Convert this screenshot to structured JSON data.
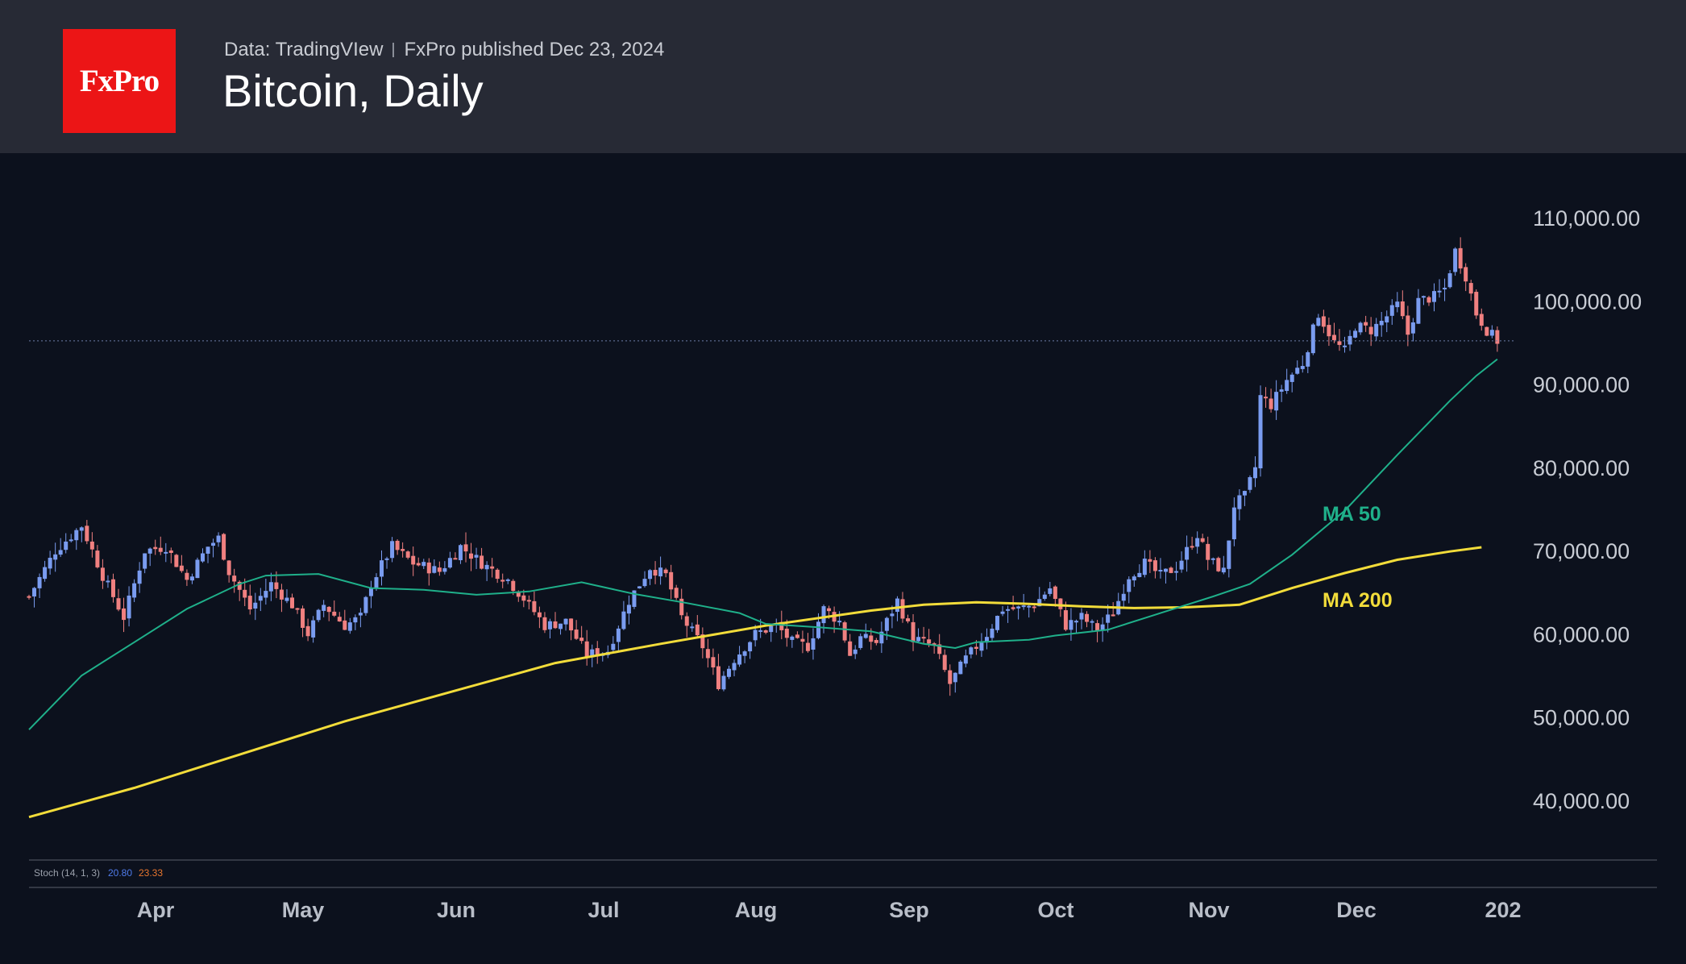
{
  "header": {
    "logo": "FxPro",
    "data_source": "Data: TradingVIew",
    "publisher": "FxPro published Dec 23, 2024",
    "title": "Bitcoin, Daily"
  },
  "colors": {
    "up_candle": "#7a9cf0",
    "down_candle": "#f08080",
    "ma50": "#1fb08a",
    "ma200": "#f2dc3a",
    "stoch_k": "#4f7bea",
    "stoch_d": "#e8762e"
  },
  "chart_data": {
    "type": "candlestick",
    "title": "Bitcoin, Daily",
    "y_axis": {
      "ticks": [
        110000,
        100000,
        90000,
        80000,
        70000,
        60000,
        50000,
        40000
      ],
      "tick_labels": [
        "110,000.00",
        "100,000.00",
        "90,000.00",
        "80,000.00",
        "70,000.00",
        "60,000.00",
        "50,000.00",
        "40,000.00"
      ],
      "range": [
        33000,
        114000
      ]
    },
    "x_axis": {
      "labels": [
        "Apr",
        "May",
        "Jun",
        "Jul",
        "Aug",
        "Sep",
        "Oct",
        "Nov",
        "Dec",
        "202"
      ],
      "range_days": [
        0,
        300
      ]
    },
    "current_price": 95200,
    "close_path": [
      [
        0,
        64500
      ],
      [
        5,
        70000
      ],
      [
        10,
        73000
      ],
      [
        14,
        67000
      ],
      [
        18,
        62000
      ],
      [
        22,
        70000
      ],
      [
        26,
        70500
      ],
      [
        30,
        66500
      ],
      [
        34,
        70500
      ],
      [
        36,
        71500
      ],
      [
        38,
        67500
      ],
      [
        42,
        63000
      ],
      [
        46,
        66000
      ],
      [
        50,
        63500
      ],
      [
        53,
        60000
      ],
      [
        56,
        63500
      ],
      [
        60,
        61000
      ],
      [
        63,
        62000
      ],
      [
        65,
        66000
      ],
      [
        69,
        70500
      ],
      [
        73,
        68500
      ],
      [
        78,
        67500
      ],
      [
        82,
        70500
      ],
      [
        86,
        68500
      ],
      [
        91,
        66500
      ],
      [
        95,
        63500
      ],
      [
        98,
        61000
      ],
      [
        102,
        61500
      ],
      [
        106,
        57500
      ],
      [
        110,
        58000
      ],
      [
        114,
        64000
      ],
      [
        118,
        68000
      ],
      [
        121,
        67000
      ],
      [
        124,
        62000
      ],
      [
        128,
        58500
      ],
      [
        131,
        54000
      ],
      [
        134,
        57000
      ],
      [
        138,
        60000
      ],
      [
        142,
        61000
      ],
      [
        145,
        59000
      ],
      [
        148,
        58500
      ],
      [
        151,
        63000
      ],
      [
        154,
        61500
      ],
      [
        156,
        57500
      ],
      [
        158,
        59500
      ],
      [
        161,
        59000
      ],
      [
        165,
        64000
      ],
      [
        168,
        59500
      ],
      [
        172,
        58500
      ],
      [
        175,
        54000
      ],
      [
        178,
        57000
      ],
      [
        182,
        60000
      ],
      [
        185,
        63000
      ],
      [
        188,
        63000
      ],
      [
        191,
        63500
      ],
      [
        194,
        65500
      ],
      [
        197,
        61000
      ],
      [
        200,
        62000
      ],
      [
        203,
        60500
      ],
      [
        206,
        62500
      ],
      [
        209,
        67000
      ],
      [
        212,
        68500
      ],
      [
        215,
        67000
      ],
      [
        218,
        68000
      ],
      [
        222,
        72000
      ],
      [
        224,
        69000
      ],
      [
        227,
        67500
      ],
      [
        229,
        75500
      ],
      [
        231,
        76500
      ],
      [
        233,
        80000
      ],
      [
        234,
        88500
      ],
      [
        236,
        87500
      ],
      [
        239,
        90500
      ],
      [
        242,
        92500
      ],
      [
        245,
        98500
      ],
      [
        248,
        95000
      ],
      [
        250,
        94000
      ],
      [
        252,
        97000
      ],
      [
        255,
        96500
      ],
      [
        257,
        97500
      ],
      [
        260,
        99500
      ],
      [
        262,
        96000
      ],
      [
        264,
        100000
      ],
      [
        267,
        100500
      ],
      [
        269,
        101500
      ],
      [
        271,
        106000
      ],
      [
        273,
        103000
      ],
      [
        275,
        98500
      ],
      [
        277,
        96500
      ],
      [
        279,
        95200
      ]
    ],
    "series": [
      {
        "name": "MA 50",
        "points": [
          [
            0,
            48500
          ],
          [
            10,
            55000
          ],
          [
            20,
            59000
          ],
          [
            30,
            63000
          ],
          [
            40,
            66000
          ],
          [
            45,
            67000
          ],
          [
            55,
            67200
          ],
          [
            65,
            65500
          ],
          [
            75,
            65300
          ],
          [
            85,
            64700
          ],
          [
            95,
            65100
          ],
          [
            105,
            66200
          ],
          [
            115,
            64800
          ],
          [
            125,
            63700
          ],
          [
            135,
            62500
          ],
          [
            140,
            61200
          ],
          [
            150,
            60800
          ],
          [
            160,
            60300
          ],
          [
            170,
            58800
          ],
          [
            176,
            58300
          ],
          [
            180,
            59000
          ],
          [
            190,
            59300
          ],
          [
            195,
            59800
          ],
          [
            205,
            60500
          ],
          [
            215,
            62500
          ],
          [
            225,
            64500
          ],
          [
            232,
            66000
          ],
          [
            240,
            69500
          ],
          [
            250,
            74800
          ],
          [
            260,
            81500
          ],
          [
            270,
            88000
          ],
          [
            275,
            91000
          ],
          [
            279,
            93000
          ]
        ]
      },
      {
        "name": "MA 200",
        "points": [
          [
            0,
            38000
          ],
          [
            20,
            41500
          ],
          [
            40,
            45500
          ],
          [
            60,
            49500
          ],
          [
            80,
            53000
          ],
          [
            100,
            56500
          ],
          [
            120,
            58800
          ],
          [
            140,
            61000
          ],
          [
            160,
            62800
          ],
          [
            170,
            63500
          ],
          [
            180,
            63800
          ],
          [
            190,
            63600
          ],
          [
            200,
            63300
          ],
          [
            210,
            63100
          ],
          [
            220,
            63200
          ],
          [
            230,
            63500
          ],
          [
            240,
            65500
          ],
          [
            250,
            67300
          ],
          [
            260,
            68900
          ],
          [
            270,
            69900
          ],
          [
            276,
            70400
          ]
        ]
      }
    ],
    "indicator": {
      "name": "Stoch (14, 1, 3)",
      "k_value": "20.80",
      "d_value": "23.33"
    }
  }
}
